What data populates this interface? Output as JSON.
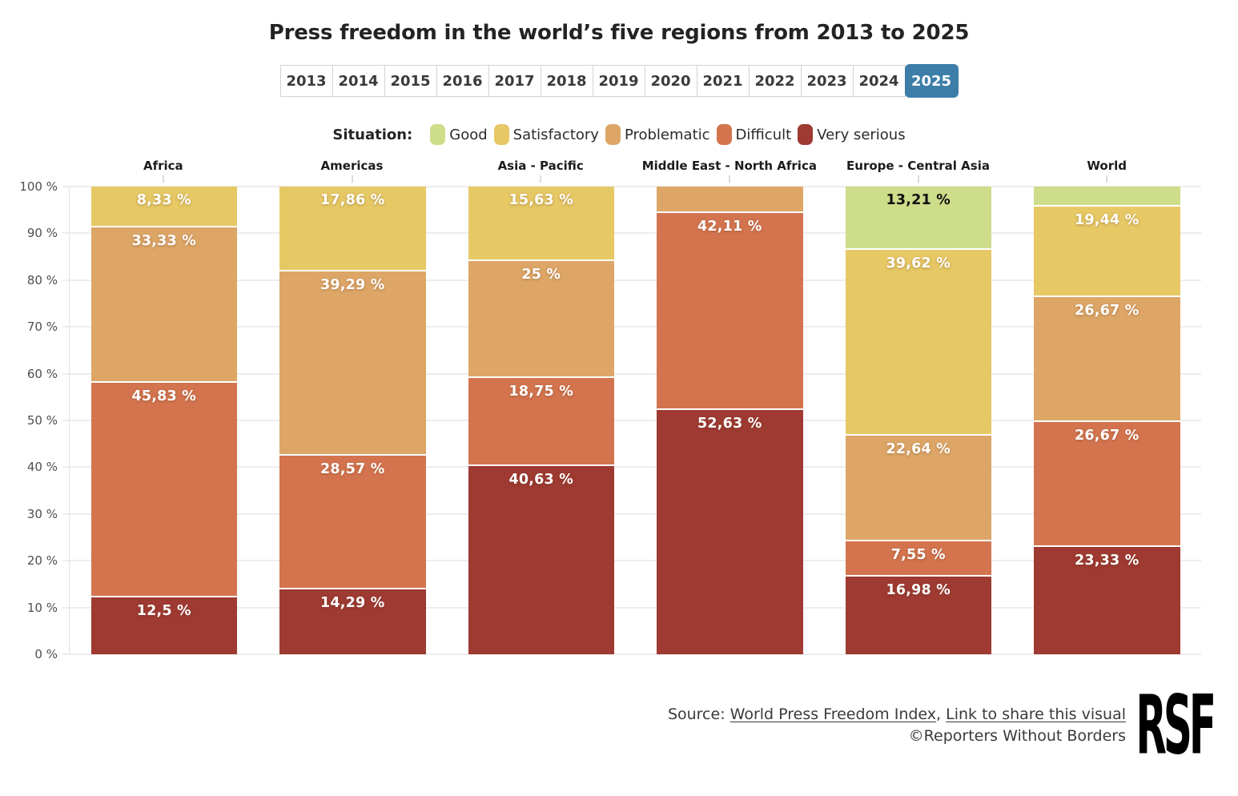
{
  "page": {
    "title": "Press freedom in the world’s five regions from 2013 to 2025"
  },
  "tabs": {
    "years": [
      "2013",
      "2014",
      "2015",
      "2016",
      "2017",
      "2018",
      "2019",
      "2020",
      "2021",
      "2022",
      "2023",
      "2024",
      "2025"
    ],
    "selected": "2025",
    "selected_color": "#3d7ea8"
  },
  "legend": {
    "title": "Situation:",
    "items": [
      {
        "label": "Good",
        "color": "#cddd8a"
      },
      {
        "label": "Satisfactory",
        "color": "#e6c865"
      },
      {
        "label": "Problematic",
        "color": "#dda667"
      },
      {
        "label": "Difficult",
        "color": "#d3744f"
      },
      {
        "label": "Very serious",
        "color": "#9e3a32"
      }
    ]
  },
  "chart_data": {
    "type": "bar",
    "subtype": "stacked-percentage",
    "title": "Press freedom in the world’s five regions from 2013 to 2025",
    "year_shown": "2025",
    "ylim": [
      0,
      100
    ],
    "yticks": [
      "0 %",
      "10 %",
      "20 %",
      "30 %",
      "40 %",
      "50 %",
      "60 %",
      "70 %",
      "80 %",
      "90 %",
      "100 %"
    ],
    "grid": true,
    "stack_order_top_to_bottom": [
      "Good",
      "Satisfactory",
      "Problematic",
      "Difficult",
      "Very serious"
    ],
    "colors": {
      "Good": "#cddd8a",
      "Satisfactory": "#e6c865",
      "Problematic": "#dda667",
      "Difficult": "#d3744f",
      "Very serious": "#9e3a32"
    },
    "categories": [
      "Africa",
      "Americas",
      "Asia - Pacific",
      "Middle East - North Africa",
      "Europe - Central Asia",
      "World"
    ],
    "bars": [
      {
        "category": "Africa",
        "segments": [
          {
            "situation": "Satisfactory",
            "value": 8.33,
            "label": "8,33 %"
          },
          {
            "situation": "Problematic",
            "value": 33.33,
            "label": "33,33 %"
          },
          {
            "situation": "Difficult",
            "value": 45.83,
            "label": "45,83 %"
          },
          {
            "situation": "Very serious",
            "value": 12.5,
            "label": "12,5 %"
          }
        ]
      },
      {
        "category": "Americas",
        "segments": [
          {
            "situation": "Satisfactory",
            "value": 17.86,
            "label": "17,86 %"
          },
          {
            "situation": "Problematic",
            "value": 39.29,
            "label": "39,29 %"
          },
          {
            "situation": "Difficult",
            "value": 28.57,
            "label": "28,57 %"
          },
          {
            "situation": "Very serious",
            "value": 14.29,
            "label": "14,29 %"
          }
        ]
      },
      {
        "category": "Asia - Pacific",
        "segments": [
          {
            "situation": "Satisfactory",
            "value": 15.63,
            "label": "15,63 %"
          },
          {
            "situation": "Problematic",
            "value": 25,
            "label": "25 %"
          },
          {
            "situation": "Difficult",
            "value": 18.75,
            "label": "18,75 %"
          },
          {
            "situation": "Very serious",
            "value": 40.63,
            "label": "40,63 %"
          }
        ]
      },
      {
        "category": "Middle East - North Africa",
        "segments": [
          {
            "situation": "Problematic",
            "value": 5.26,
            "label": ""
          },
          {
            "situation": "Difficult",
            "value": 42.11,
            "label": "42,11 %"
          },
          {
            "situation": "Very serious",
            "value": 52.63,
            "label": "52,63 %"
          }
        ]
      },
      {
        "category": "Europe - Central Asia",
        "segments": [
          {
            "situation": "Good",
            "value": 13.21,
            "label": "13,21 %",
            "label_dark": true
          },
          {
            "situation": "Satisfactory",
            "value": 39.62,
            "label": "39,62 %"
          },
          {
            "situation": "Problematic",
            "value": 22.64,
            "label": "22,64 %"
          },
          {
            "situation": "Difficult",
            "value": 7.55,
            "label": "7,55 %"
          },
          {
            "situation": "Very serious",
            "value": 16.98,
            "label": "16,98 %"
          }
        ]
      },
      {
        "category": "World",
        "segments": [
          {
            "situation": "Good",
            "value": 3.89,
            "label": ""
          },
          {
            "situation": "Satisfactory",
            "value": 19.44,
            "label": "19,44 %"
          },
          {
            "situation": "Problematic",
            "value": 26.67,
            "label": "26,67 %"
          },
          {
            "situation": "Difficult",
            "value": 26.67,
            "label": "26,67 %"
          },
          {
            "situation": "Very serious",
            "value": 23.33,
            "label": "23,33 %"
          }
        ]
      }
    ]
  },
  "footer": {
    "source_prefix": "Source: ",
    "source_link": "World Press Freedom Index",
    "separator": ", ",
    "share_link": "Link to share this visual",
    "copyright": "©Reporters Without Borders",
    "logo_text": "RSF"
  }
}
